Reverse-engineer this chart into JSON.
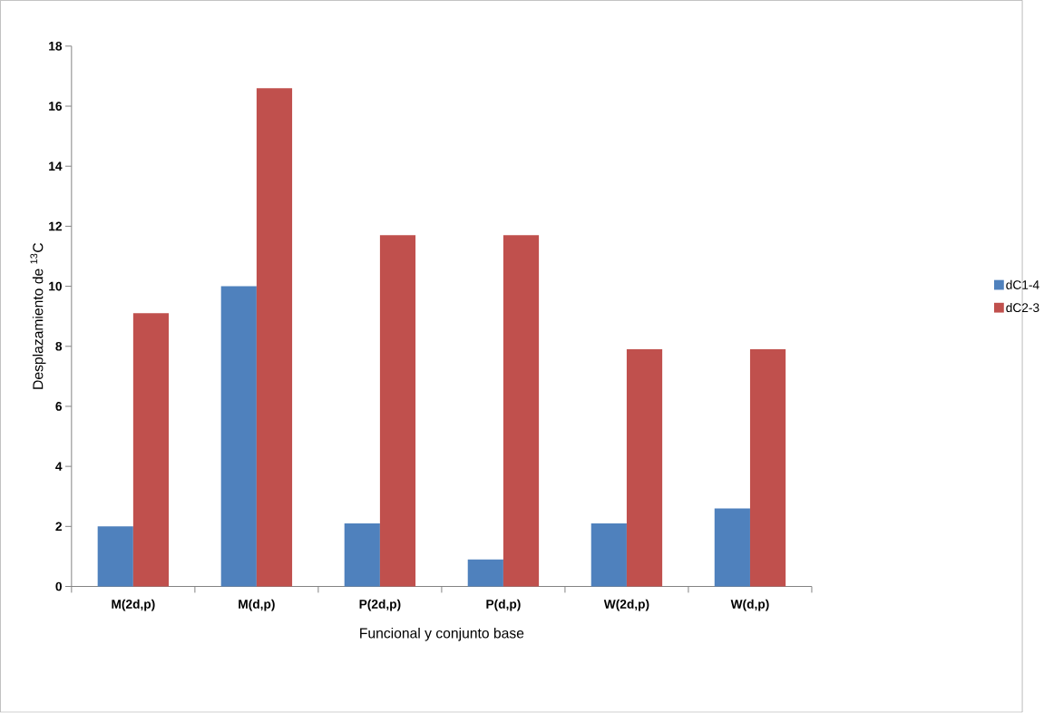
{
  "chart_data": {
    "type": "bar",
    "xlabel": "Funcional y conjunto base",
    "ylabel": "Desplazamiento de $^{13}$C",
    "categories": [
      "M(2d,p)",
      "M(d,p)",
      "P(2d,p)",
      "P(d,p)",
      "W(2d,p)",
      "W(d,p)"
    ],
    "series": [
      {
        "name": "dC1-4",
        "color": "#4f81bd",
        "values": [
          2.0,
          10.0,
          2.1,
          0.9,
          2.1,
          2.6
        ]
      },
      {
        "name": "dC2-3",
        "color": "#c0504d",
        "values": [
          9.1,
          16.6,
          11.7,
          11.7,
          7.9,
          7.9
        ]
      }
    ],
    "ylim": [
      0,
      18
    ],
    "yticks": [
      0,
      2,
      4,
      6,
      8,
      10,
      12,
      14,
      16,
      18
    ],
    "grid": false,
    "legend": "right"
  }
}
